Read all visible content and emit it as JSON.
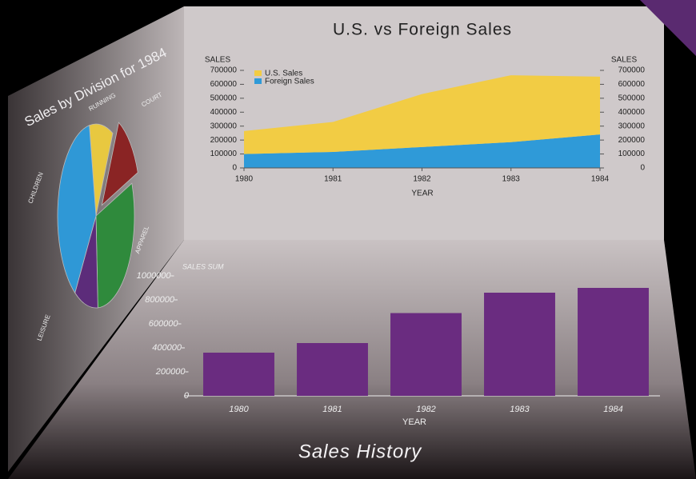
{
  "chart_data": [
    {
      "type": "pie",
      "title": "Sales by Division for 1984",
      "categories": [
        "RUNNING",
        "COURT",
        "APPAREL",
        "LEISURE",
        "CHILDREN"
      ],
      "values": [
        10,
        12,
        30,
        10,
        38
      ],
      "colors": [
        "#e8c840",
        "#8a2424",
        "#2f8a3c",
        "#5c2c7a",
        "#2f98d6"
      ]
    },
    {
      "type": "area",
      "title": "U.S. vs Foreign Sales",
      "stacked": true,
      "x": [
        1980,
        1981,
        1982,
        1983,
        1984
      ],
      "xlabel": "YEAR",
      "ylabel": "SALES",
      "y2label": "SALES",
      "xlim": [
        1980,
        1984
      ],
      "xticks": [
        1980,
        1981,
        1982,
        1983,
        1984
      ],
      "ylim": [
        0,
        700000
      ],
      "yticks": [
        0,
        100000,
        200000,
        300000,
        400000,
        500000,
        600000,
        700000
      ],
      "y2lim": [
        0,
        700000
      ],
      "y2ticks": [
        0,
        100000,
        200000,
        300000,
        400000,
        500000,
        600000,
        700000
      ],
      "legend": "upper left",
      "series": [
        {
          "name": "Foreign Sales",
          "color": "#2f9ad8",
          "values": [
            100000,
            115000,
            150000,
            185000,
            240000
          ]
        },
        {
          "name": "U.S. Sales",
          "color": "#f2cc44",
          "values": [
            165000,
            215000,
            380000,
            480000,
            415000
          ]
        }
      ]
    },
    {
      "type": "bar",
      "title": "Sales History",
      "categories": [
        "1980",
        "1981",
        "1982",
        "1983",
        "1984"
      ],
      "xlabel": "YEAR",
      "ylabel": "SALES SUM",
      "values": [
        360000,
        440000,
        690000,
        860000,
        900000
      ],
      "color": "#6a2c80",
      "ylim": [
        0,
        1000000
      ],
      "yticks": [
        0,
        200000,
        400000,
        600000,
        800000,
        1000000
      ]
    }
  ]
}
